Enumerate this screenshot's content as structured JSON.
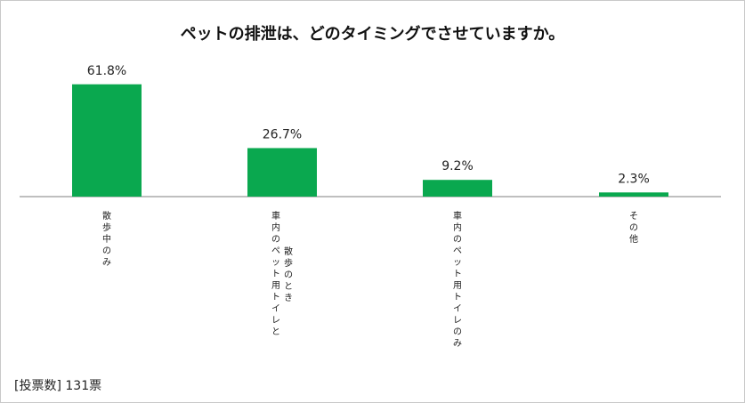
{
  "chart_data": {
    "type": "bar",
    "title": "ペットの排泄は、どのタイミングでさせていますか。",
    "categories": [
      "散歩中のみ",
      "車内のペット用トイレと散歩のとき",
      "車内のペット用トイレのみ",
      "その他"
    ],
    "category_lines": [
      [
        "散歩中のみ"
      ],
      [
        "車内のペット用トイレと",
        "散歩のとき"
      ],
      [
        "車内のペット用トイレのみ"
      ],
      [
        "その他"
      ]
    ],
    "values": [
      61.8,
      26.7,
      9.2,
      2.3
    ],
    "value_labels": [
      "61.8%",
      "26.7%",
      "9.2%",
      "2.3%"
    ],
    "ylim": [
      0,
      70
    ],
    "grid": false,
    "bar_color": "#0aa84f",
    "xlabel": "",
    "ylabel": ""
  },
  "footer": "[投票数] 131票"
}
